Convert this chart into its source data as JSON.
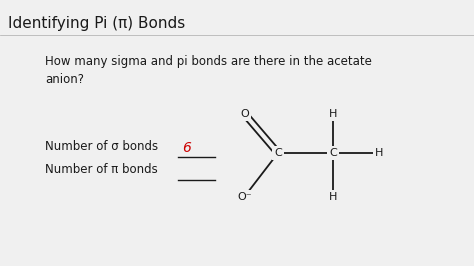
{
  "title": "Identifying Pi (π) Bonds",
  "question": "How many sigma and pi bonds are there in the acetate\nanion?",
  "label_sigma": "Number of σ bonds ",
  "label_pi": "Number of π bonds ",
  "answer_sigma": "6",
  "bg_color": "#f0f0f0",
  "text_color": "#1a1a1a",
  "answer_color": "#cc0000",
  "title_fontsize": 11,
  "body_fontsize": 8.5,
  "answer_fontsize": 10,
  "mol_fontsize": 8
}
